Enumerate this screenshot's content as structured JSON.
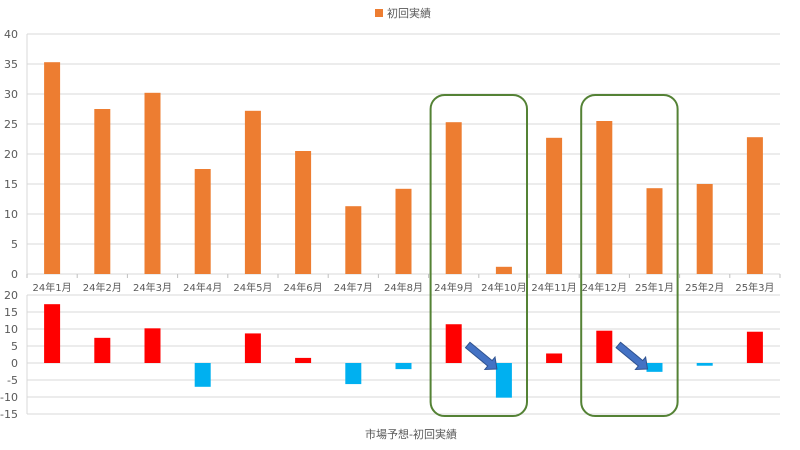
{
  "chart_data": [
    {
      "type": "bar",
      "title": "",
      "legend": [
        {
          "label": "初回実績",
          "color": "#ED7D31"
        }
      ],
      "legend_position": "top",
      "categories": [
        "24年1月",
        "24年2月",
        "24年3月",
        "24年4月",
        "24年5月",
        "24年6月",
        "24年7月",
        "24年8月",
        "24年9月",
        "24年10月",
        "24年11月",
        "24年12月",
        "25年1月",
        "25年2月",
        "25年3月"
      ],
      "series": [
        {
          "name": "初回実績",
          "color": "#ED7D31",
          "values": [
            35.3,
            27.5,
            30.2,
            17.5,
            27.2,
            20.5,
            11.3,
            14.2,
            25.3,
            1.2,
            22.7,
            25.5,
            14.3,
            15.0,
            22.8
          ]
        }
      ],
      "xlabel": "",
      "ylabel": "",
      "ylim": [
        0,
        40
      ],
      "yticks": [
        0,
        5,
        10,
        15,
        20,
        25,
        30,
        35,
        40
      ],
      "grid": true
    },
    {
      "type": "bar",
      "title": "",
      "categories": [
        "24年1月",
        "24年2月",
        "24年3月",
        "24年4月",
        "24年5月",
        "24年6月",
        "24年7月",
        "24年8月",
        "24年9月",
        "24年10月",
        "24年11月",
        "24年12月",
        "25年1月",
        "25年2月",
        "25年3月"
      ],
      "series": [
        {
          "name": "市場予想-初回実績",
          "positive_color": "#FF0000",
          "negative_color": "#00B0F0",
          "values": [
            17.3,
            7.4,
            10.2,
            -7.0,
            8.7,
            1.5,
            -6.2,
            -1.8,
            11.4,
            -10.2,
            2.8,
            9.5,
            -2.6,
            -0.8,
            9.2
          ]
        }
      ],
      "xlabel": "市場予想-初回実績",
      "ylabel": "",
      "ylim": [
        -15,
        20
      ],
      "yticks": [
        -15,
        -10,
        -5,
        0,
        5,
        10,
        15,
        20
      ],
      "grid": true,
      "annotations": [
        {
          "type": "rounded-rect",
          "color": "#548235",
          "covers": [
            "24年9月",
            "24年10月"
          ]
        },
        {
          "type": "rounded-rect",
          "color": "#548235",
          "covers": [
            "24年12月",
            "25年1月"
          ]
        },
        {
          "type": "arrow",
          "direction": "down-right",
          "color": "#4472C4",
          "from": "24年9月",
          "to": "24年10月"
        },
        {
          "type": "arrow",
          "direction": "down-right",
          "color": "#4472C4",
          "from": "24年12月",
          "to": "25年1月"
        }
      ]
    }
  ],
  "legend": {
    "label": "初回実績"
  },
  "bottom_axis_title": "市場予想-初回実績",
  "colors": {
    "orange": "#ED7D31",
    "red": "#FF0000",
    "blue": "#00B0F0",
    "green": "#548235",
    "arrow": "#4472C4",
    "grid": "#D9D9D9"
  }
}
